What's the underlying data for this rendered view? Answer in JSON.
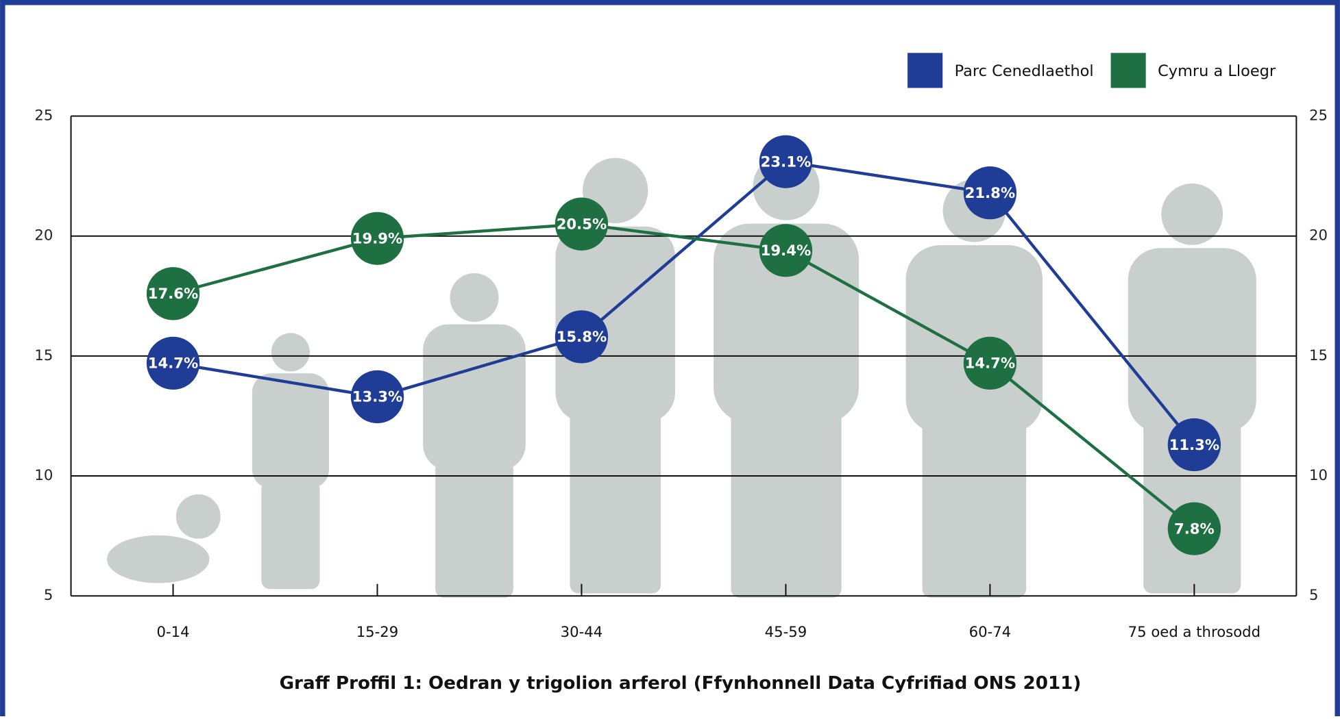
{
  "chart_data": {
    "type": "line",
    "title": "Graff Proffil 1: Oedran y trigolion arferol (Ffynhonnell Data Cyfrifiad ONS 2011)",
    "categories": [
      "0-14",
      "15-29",
      "30-44",
      "45-59",
      "60-74",
      "75 oed a throsodd"
    ],
    "series": [
      {
        "name": "Parc Cenedlaethol",
        "color": "#1f3c96",
        "values": [
          14.7,
          13.3,
          15.8,
          23.1,
          21.8,
          11.3
        ],
        "value_labels": [
          "14.7%",
          "13.3%",
          "15.8%",
          "23.1%",
          "21.8%",
          "11.3%"
        ]
      },
      {
        "name": "Cymru a Lloegr",
        "color": "#1e7042",
        "values": [
          17.6,
          19.9,
          20.5,
          19.4,
          14.7,
          7.8
        ],
        "value_labels": [
          "17.6%",
          "19.9%",
          "20.5%",
          "19.4%",
          "14.7%",
          "7.8%"
        ]
      }
    ],
    "ylim": [
      5,
      25
    ],
    "yticks": [
      5,
      10,
      15,
      20,
      25
    ],
    "y2lim": [
      5,
      25
    ],
    "y2ticks": [
      5,
      10,
      15,
      20,
      25
    ],
    "grid": true,
    "legend": "top-right"
  }
}
